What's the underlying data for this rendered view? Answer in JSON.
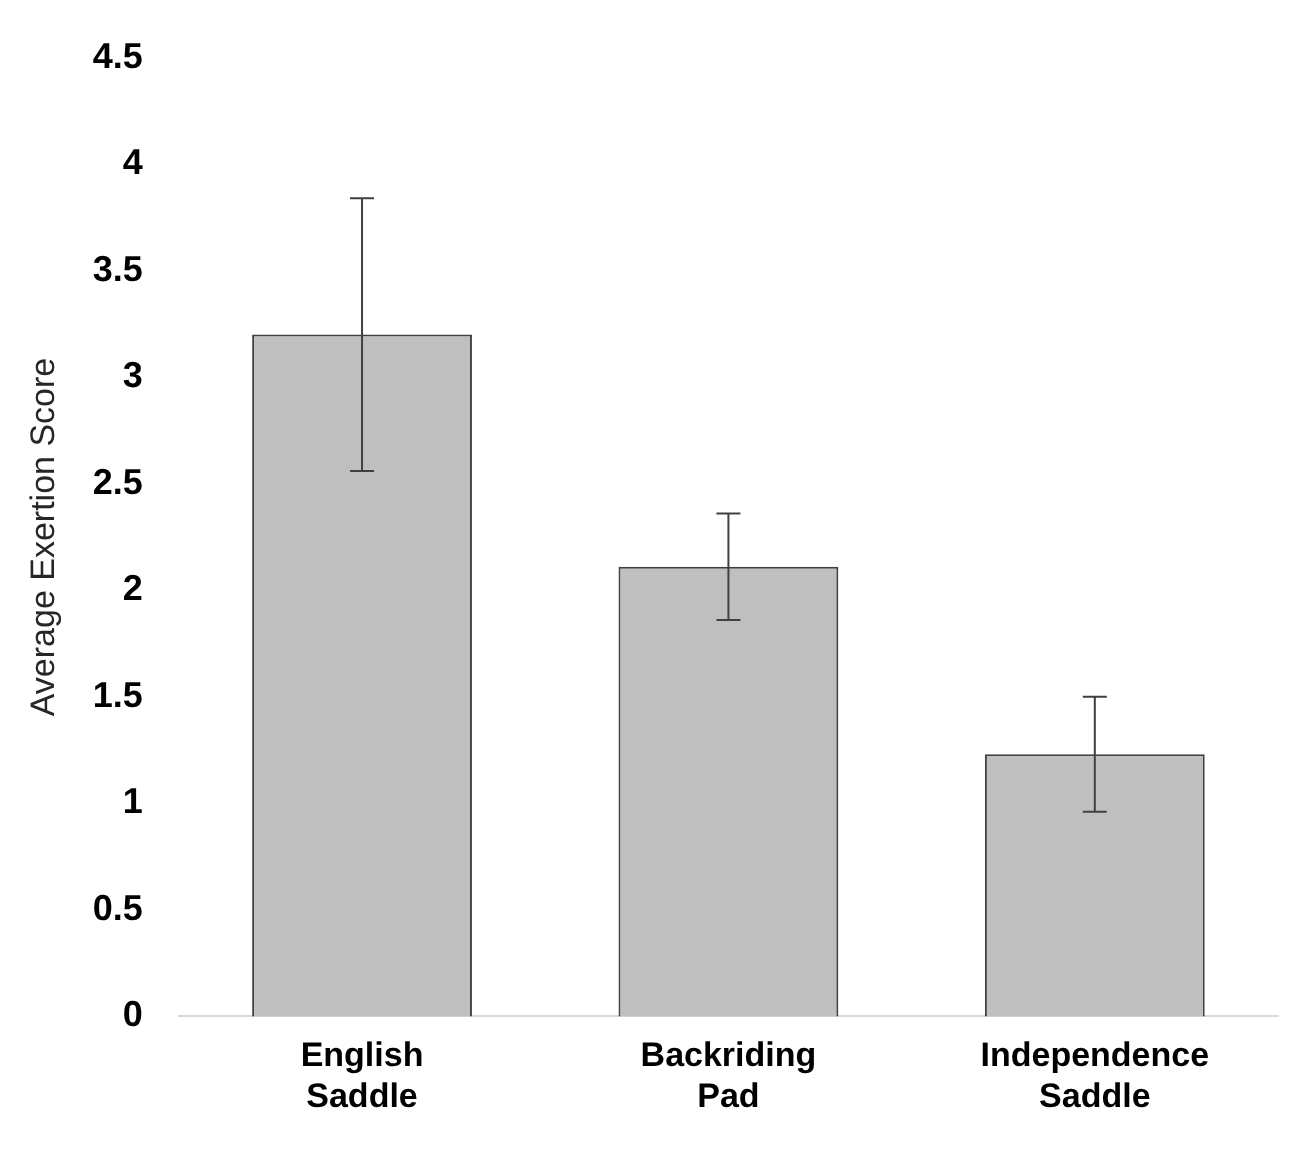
{
  "chart_data": {
    "type": "bar",
    "ylabel": "Average Exertion Score",
    "categories": [
      "English Saddle",
      "Backriding Pad",
      "Independence Saddle"
    ],
    "values": [
      3.2,
      2.11,
      1.23
    ],
    "errors": [
      0.64,
      0.25,
      0.27
    ],
    "color": "#bfbfbf",
    "ylim": [
      0,
      4.5
    ],
    "yticks": [
      0,
      0.5,
      1,
      1.5,
      2,
      2.5,
      3,
      3.5,
      4,
      4.5
    ],
    "grid": false,
    "legend": false
  }
}
